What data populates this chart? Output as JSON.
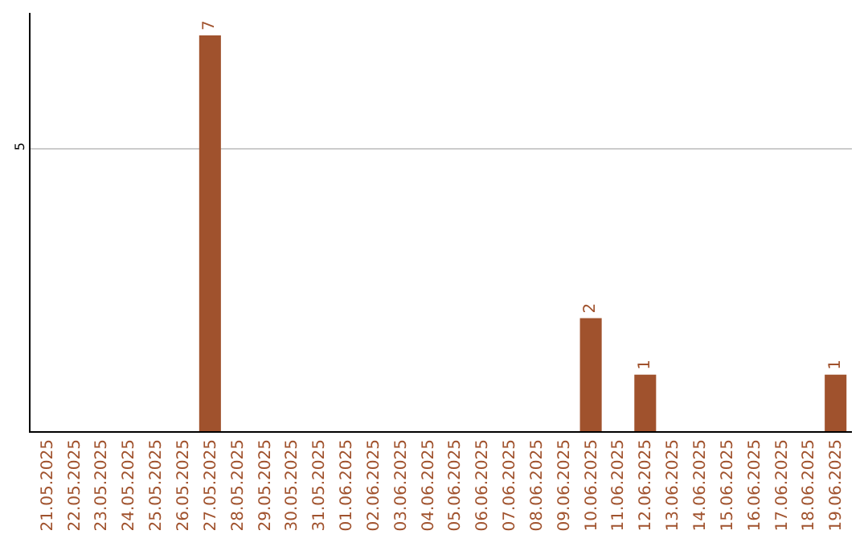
{
  "chart_data": {
    "type": "bar",
    "categories": [
      "21.05.2025",
      "22.05.2025",
      "23.05.2025",
      "24.05.2025",
      "25.05.2025",
      "26.05.2025",
      "27.05.2025",
      "28.05.2025",
      "29.05.2025",
      "30.05.2025",
      "31.05.2025",
      "01.06.2025",
      "02.06.2025",
      "03.06.2025",
      "04.06.2025",
      "05.06.2025",
      "06.06.2025",
      "07.06.2025",
      "08.06.2025",
      "09.06.2025",
      "10.06.2025",
      "11.06.2025",
      "12.06.2025",
      "13.06.2025",
      "14.06.2025",
      "15.06.2025",
      "16.06.2025",
      "17.06.2025",
      "18.06.2025",
      "19.06.2025"
    ],
    "values": [
      0,
      0,
      0,
      0,
      0,
      0,
      7,
      0,
      0,
      0,
      0,
      0,
      0,
      0,
      0,
      0,
      0,
      0,
      0,
      0,
      2,
      0,
      1,
      0,
      0,
      0,
      0,
      0,
      0,
      1
    ],
    "value_labels": [
      null,
      null,
      null,
      null,
      null,
      null,
      "7",
      null,
      null,
      null,
      null,
      null,
      null,
      null,
      null,
      null,
      null,
      null,
      null,
      null,
      "2",
      null,
      "1",
      null,
      null,
      null,
      null,
      null,
      null,
      "1"
    ],
    "color": "#a0522d",
    "ylim": [
      0,
      7.4
    ],
    "yticks": [
      5
    ],
    "grid": "y"
  }
}
